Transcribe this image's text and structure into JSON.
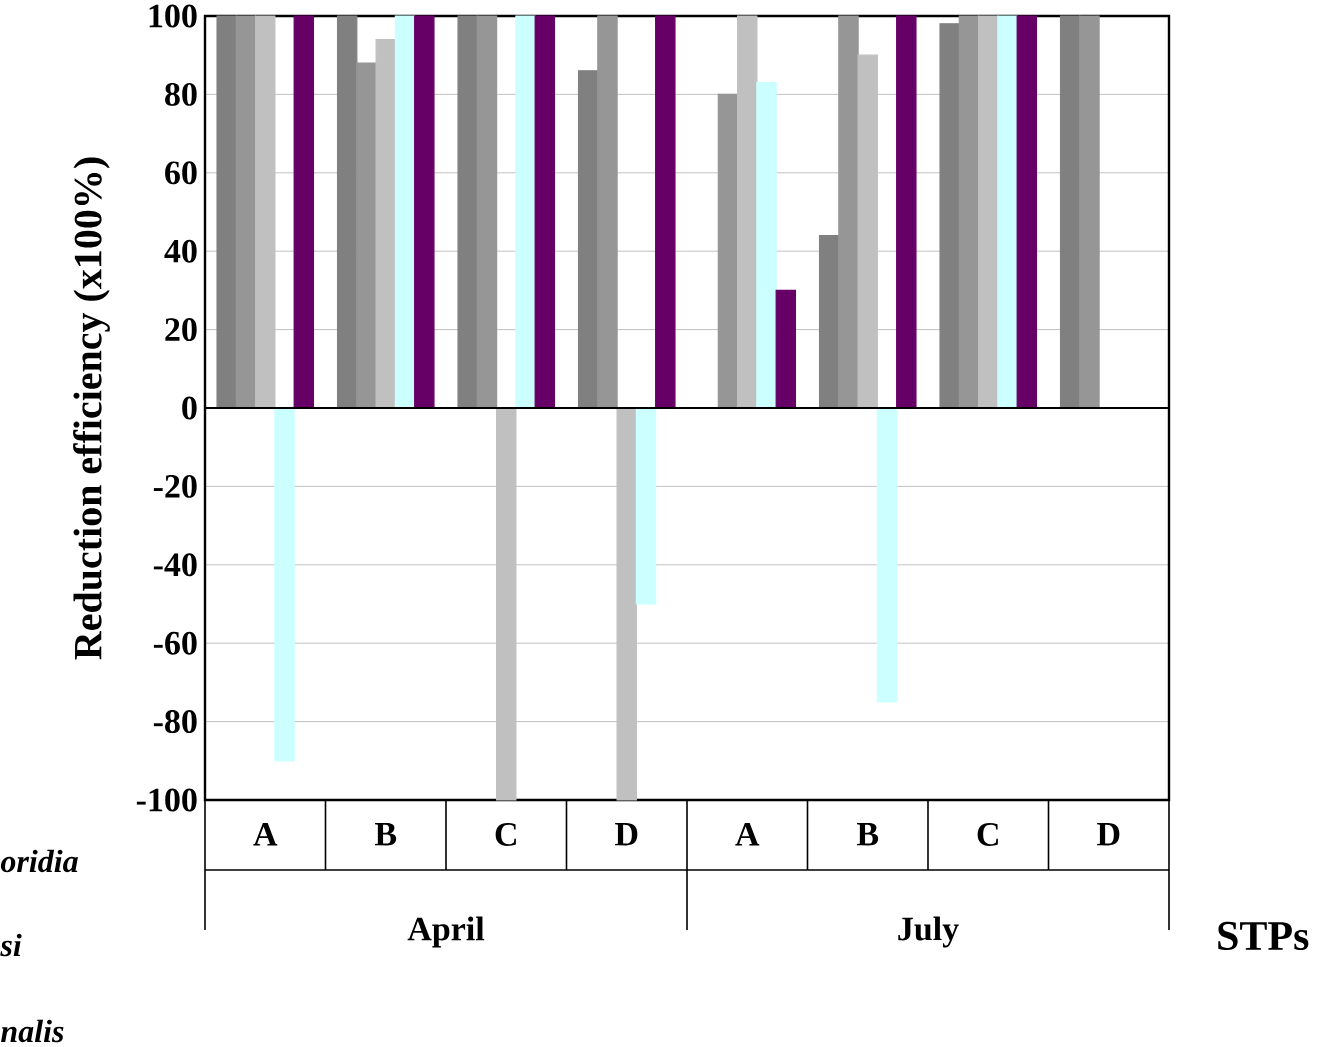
{
  "chart_data": {
    "type": "bar",
    "ylabel": "Reduction efficiency (x100%)",
    "xlabel": "STPs",
    "categories": [
      "A",
      "B",
      "C",
      "D",
      "A",
      "B",
      "C",
      "D"
    ],
    "series": [
      {
        "color": "#808080",
        "values": [
          100,
          100,
          100,
          86,
          0,
          44,
          98,
          100
        ]
      },
      {
        "color": "#969696",
        "values": [
          100,
          88,
          100,
          100,
          80,
          100,
          100,
          100
        ]
      },
      {
        "color": "#c0c0c0",
        "values": [
          100,
          94,
          -100,
          -100,
          100,
          90,
          100,
          0
        ]
      },
      {
        "color": "#ccffff",
        "values": [
          -90,
          100,
          100,
          -50,
          83,
          -75,
          100,
          0
        ]
      },
      {
        "color": "#660066",
        "values": [
          100,
          100,
          100,
          100,
          30,
          100,
          100,
          0
        ]
      }
    ],
    "ylim": [
      -100,
      100
    ],
    "yticks": [
      -100,
      -80,
      -60,
      -40,
      -20,
      0,
      20,
      40,
      60,
      80,
      100
    ],
    "grid": "y",
    "annotations": [
      "April",
      "July",
      "oridia",
      "si",
      "nalis"
    ]
  }
}
